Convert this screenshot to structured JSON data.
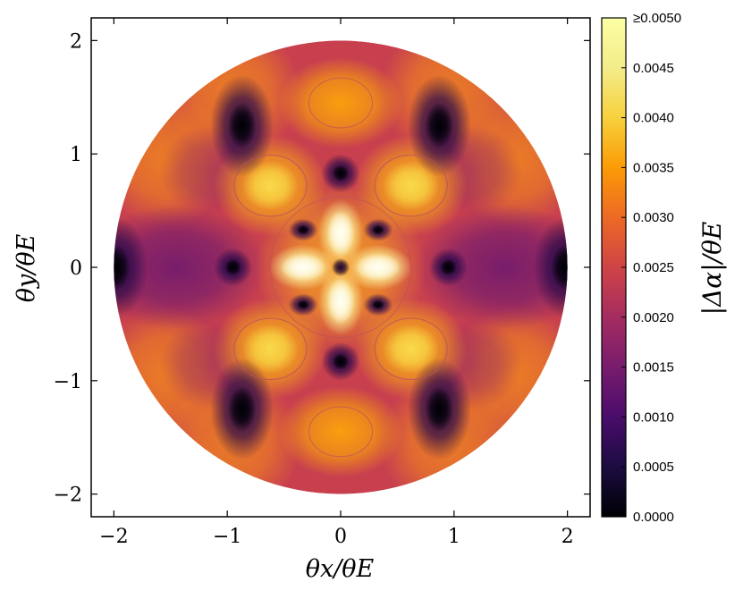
{
  "chart_data": {
    "type": "heatmap",
    "title": "",
    "xlabel": "θx/θE",
    "ylabel": "θy/θE",
    "colorbar_label": "|Δα|/θE",
    "xlim": [
      -2.2,
      2.2
    ],
    "ylim": [
      -2.2,
      2.2
    ],
    "x_ticks": [
      -2,
      -1,
      0,
      1,
      2
    ],
    "y_ticks": [
      -2,
      -1,
      0,
      1,
      2
    ],
    "x_tick_labels": [
      "−2",
      "−1",
      "0",
      "1",
      "2"
    ],
    "y_tick_labels": [
      "−2",
      "−1",
      "0",
      "1",
      "2"
    ],
    "domain": "disk of radius 2",
    "colormap": "inferno",
    "colorbar_range": [
      0.0,
      0.005
    ],
    "colorbar_ticks": [
      0.0,
      0.0005,
      0.001,
      0.0015,
      0.002,
      0.0025,
      0.003,
      0.0035,
      0.004,
      0.0045,
      0.005
    ],
    "colorbar_tick_labels": [
      "0.0000",
      "0.0005",
      "0.0010",
      "0.0015",
      "0.0020",
      "0.0025",
      "0.0030",
      "0.0035",
      "0.0040",
      "0.0045",
      "≥0.0050"
    ],
    "contours": true,
    "features": {
      "saturated_lobes": [
        [
          0.0,
          0.3
        ],
        [
          0.0,
          -0.3
        ],
        [
          0.33,
          0.0
        ],
        [
          -0.33,
          0.0
        ]
      ],
      "center_minimum": [
        0.0,
        0.0
      ],
      "bright_lobes": [
        [
          0.62,
          0.72
        ],
        [
          -0.62,
          0.72
        ],
        [
          0.62,
          -0.72
        ],
        [
          -0.62,
          -0.72
        ]
      ],
      "dark_minima": [
        [
          0.0,
          0.83
        ],
        [
          0.0,
          -0.83
        ],
        [
          0.95,
          0.0
        ],
        [
          -0.95,
          0.0
        ],
        [
          0.87,
          1.25
        ],
        [
          -0.87,
          1.25
        ],
        [
          0.87,
          -1.25
        ],
        [
          -0.87,
          -1.25
        ],
        [
          0.33,
          0.33
        ],
        [
          -0.33,
          0.33
        ],
        [
          0.33,
          -0.33
        ],
        [
          -0.33,
          -0.33
        ],
        [
          1.98,
          0.0
        ],
        [
          -1.98,
          0.0
        ]
      ]
    }
  }
}
